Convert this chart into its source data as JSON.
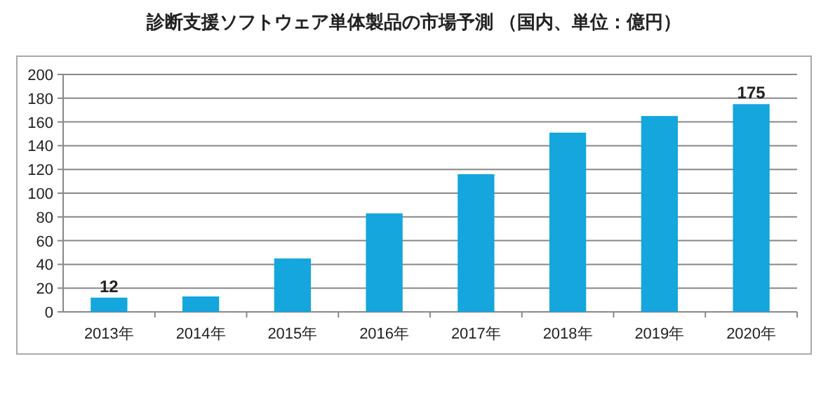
{
  "chart_data": {
    "type": "bar",
    "title": "診断支援ソフトウェア単体製品の市場予測 （国内、単位：億円）",
    "categories": [
      "2013年",
      "2014年",
      "2015年",
      "2016年",
      "2017年",
      "2018年",
      "2019年",
      "2020年"
    ],
    "values": [
      12,
      13,
      45,
      83,
      116,
      151,
      165,
      175
    ],
    "value_labels": [
      "12",
      null,
      null,
      null,
      null,
      null,
      null,
      "175"
    ],
    "color": "#14a6dc",
    "ylim": [
      0,
      200
    ],
    "yticks": [
      0,
      20,
      40,
      60,
      80,
      100,
      120,
      140,
      160,
      180,
      200
    ],
    "grid": "y"
  }
}
